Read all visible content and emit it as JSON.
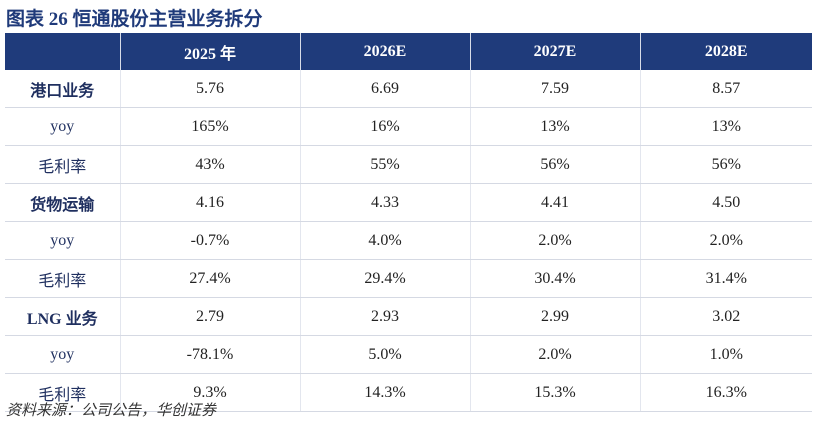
{
  "header": {
    "title": "图表 26 恒通股份主营业务拆分"
  },
  "table": {
    "columns": [
      "",
      "2025 年",
      "2026E",
      "2027E",
      "2028E"
    ],
    "rows": [
      [
        "港口业务",
        "5.76",
        "6.69",
        "7.59",
        "8.57"
      ],
      [
        "yoy",
        "165%",
        "16%",
        "13%",
        "13%"
      ],
      [
        "毛利率",
        "43%",
        "55%",
        "56%",
        "56%"
      ],
      [
        "货物运输",
        "4.16",
        "4.33",
        "4.41",
        "4.50"
      ],
      [
        "yoy",
        "-0.7%",
        "4.0%",
        "2.0%",
        "2.0%"
      ],
      [
        "毛利率",
        "27.4%",
        "29.4%",
        "30.4%",
        "31.4%"
      ],
      [
        "LNG 业务",
        "2.79",
        "2.93",
        "2.99",
        "3.02"
      ],
      [
        "yoy",
        "-78.1%",
        "5.0%",
        "2.0%",
        "1.0%"
      ],
      [
        "毛利率",
        "9.3%",
        "14.3%",
        "15.3%",
        "16.3%"
      ]
    ]
  },
  "footer": {
    "source": "资料来源：公司公告，华创证券"
  }
}
